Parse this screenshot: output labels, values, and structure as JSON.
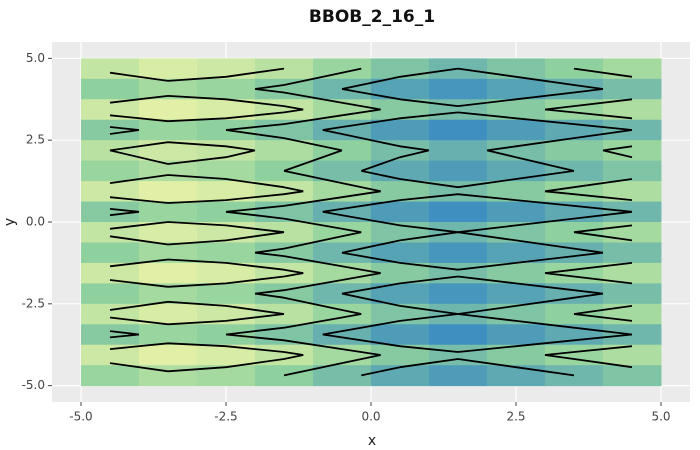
{
  "chart_data": {
    "type": "contour",
    "title": "BBOB_2_16_1",
    "xlabel": "x",
    "ylabel": "y",
    "xlim": [
      -5.5,
      5.5
    ],
    "ylim": [
      -5.5,
      5.5
    ],
    "xticks": [
      {
        "value": -5,
        "label": "-5.0"
      },
      -2.5,
      {
        "value": 0,
        "label": "0.0"
      },
      2.5,
      {
        "value": 5,
        "label": "5.0"
      }
    ],
    "yticks": [
      {
        "value": -5,
        "label": "-5.0"
      },
      -2.5,
      {
        "value": 0,
        "label": "0.0"
      },
      2.5,
      {
        "value": 5,
        "label": "5.0"
      }
    ],
    "grid": true,
    "colors": [
      "#3f8fc0",
      "#8fd19e",
      "#f6f8a8"
    ],
    "contour_levels": [
      0.3,
      0.5,
      0.7
    ],
    "x": [
      -4.5,
      -3.5,
      -2.5,
      -1.5,
      -0.5,
      0.5,
      1.5,
      2.5,
      3.5,
      4.5
    ],
    "y": [
      4.6875,
      4.0625,
      3.4375,
      2.8125,
      2.1875,
      1.5625,
      0.9375,
      0.3125,
      -0.3125,
      -0.9375,
      -1.5625,
      -2.1875,
      -2.8125,
      -3.4375,
      -4.0625,
      -4.6875
    ],
    "z": [
      [
        0.75,
        0.85,
        0.8,
        0.7,
        0.55,
        0.4,
        0.3,
        0.4,
        0.5,
        0.6
      ],
      [
        0.5,
        0.6,
        0.55,
        0.45,
        0.3,
        0.15,
        0.05,
        0.15,
        0.25,
        0.35
      ],
      [
        0.8,
        0.9,
        0.85,
        0.75,
        0.6,
        0.45,
        0.35,
        0.45,
        0.55,
        0.65
      ],
      [
        0.45,
        0.55,
        0.5,
        0.4,
        0.25,
        0.1,
        0,
        0.1,
        0.2,
        0.3
      ],
      [
        0.7,
        0.8,
        0.75,
        0.65,
        0.5,
        0.35,
        0.25,
        0.35,
        0.45,
        0.55
      ],
      [
        0.55,
        0.65,
        0.6,
        0.5,
        0.35,
        0.2,
        0.1,
        0.2,
        0.3,
        0.4
      ],
      [
        0.8,
        0.9,
        0.85,
        0.75,
        0.6,
        0.45,
        0.35,
        0.45,
        0.55,
        0.65
      ],
      [
        0.45,
        0.55,
        0.5,
        0.4,
        0.25,
        0.1,
        0,
        0.1,
        0.2,
        0.3
      ],
      [
        0.75,
        0.85,
        0.8,
        0.7,
        0.55,
        0.4,
        0.3,
        0.4,
        0.5,
        0.6
      ],
      [
        0.5,
        0.6,
        0.55,
        0.45,
        0.3,
        0.15,
        0.05,
        0.15,
        0.25,
        0.35
      ],
      [
        0.8,
        0.9,
        0.85,
        0.75,
        0.6,
        0.45,
        0.35,
        0.45,
        0.55,
        0.65
      ],
      [
        0.5,
        0.6,
        0.55,
        0.45,
        0.3,
        0.15,
        0.05,
        0.15,
        0.25,
        0.35
      ],
      [
        0.75,
        0.85,
        0.8,
        0.7,
        0.55,
        0.4,
        0.3,
        0.4,
        0.5,
        0.6
      ],
      [
        0.45,
        0.55,
        0.5,
        0.4,
        0.25,
        0.1,
        0,
        0.1,
        0.2,
        0.3
      ],
      [
        0.8,
        0.9,
        0.85,
        0.75,
        0.6,
        0.45,
        0.35,
        0.45,
        0.55,
        0.65
      ],
      [
        0.55,
        0.65,
        0.6,
        0.5,
        0.35,
        0.2,
        0.1,
        0.2,
        0.3,
        0.4
      ]
    ]
  }
}
